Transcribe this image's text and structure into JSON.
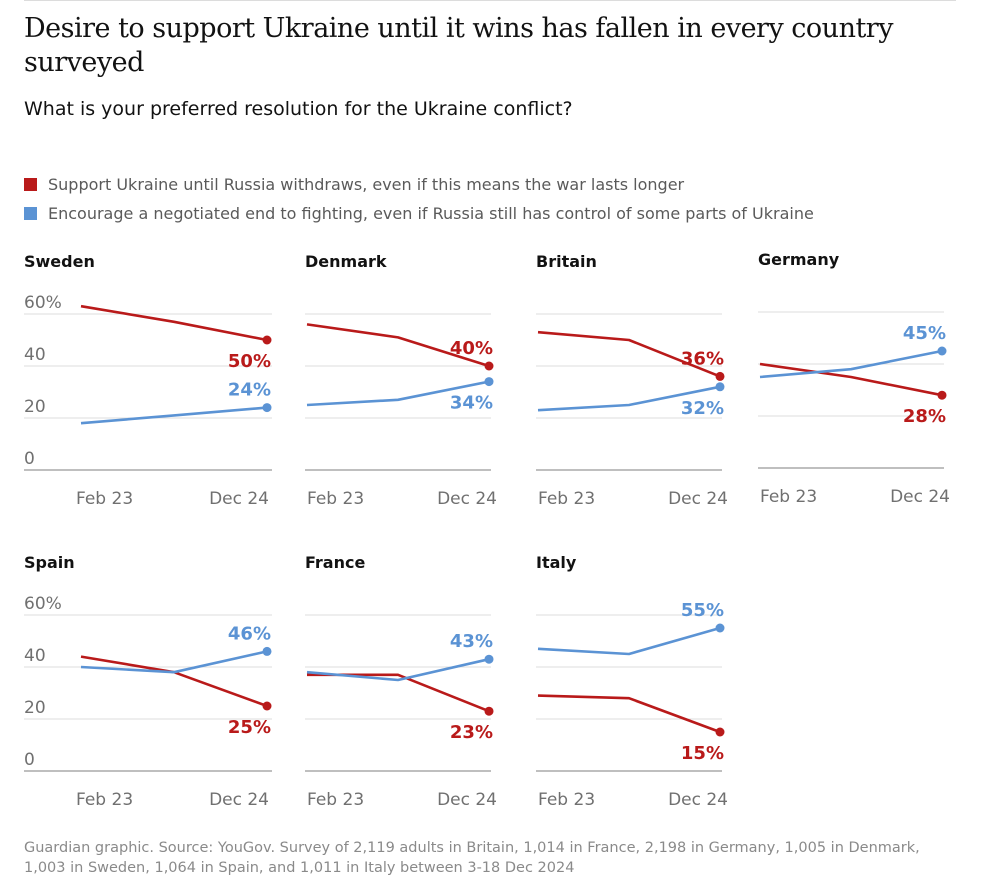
{
  "title": "Desire to support Ukraine until it wins has fallen in every country surveyed",
  "subtitle": "What is your preferred resolution for the Ukraine conflict?",
  "legend": [
    {
      "label": "Support Ukraine until Russia withdraws, even if this means the war lasts longer",
      "color": "#b91a1a"
    },
    {
      "label": "Encourage a negotiated end to fighting, even if Russia still has control of some parts of Ukraine",
      "color": "#5b93d4"
    }
  ],
  "source": "Guardian graphic. Source: YouGov. Survey of 2,119 adults in Britain, 1,014 in France, 2,198 in Germany, 1,005 in Denmark, 1,003 in Sweden, 1,064 in Spain, and 1,011 in Italy between 3-18 Dec 2024",
  "chart_data": [
    {
      "type": "line",
      "title": "Sweden",
      "x": [
        "Feb 23",
        "Dec 23",
        "Dec 24"
      ],
      "xticks": [
        "Feb 23",
        "Dec 24"
      ],
      "yticks": [
        "60%",
        "40",
        "20",
        "0"
      ],
      "ylim": [
        0,
        60
      ],
      "series": [
        {
          "values": [
            63,
            57,
            50
          ],
          "color": "#b91a1a",
          "end_label": "50%",
          "label_pos": "below"
        },
        {
          "values": [
            18,
            21,
            24
          ],
          "color": "#5b93d4",
          "end_label": "24%",
          "label_pos": "above"
        }
      ]
    },
    {
      "type": "line",
      "title": "Denmark",
      "x": [
        "Feb 23",
        "Dec 23",
        "Dec 24"
      ],
      "xticks": [
        "Feb 23",
        "Dec 24"
      ],
      "yticks": [],
      "ylim": [
        0,
        60
      ],
      "series": [
        {
          "values": [
            56,
            51,
            40
          ],
          "color": "#b91a1a",
          "end_label": "40%",
          "label_pos": "above"
        },
        {
          "values": [
            25,
            27,
            34
          ],
          "color": "#5b93d4",
          "end_label": "34%",
          "label_pos": "below"
        }
      ]
    },
    {
      "type": "line",
      "title": "Britain",
      "x": [
        "Feb 23",
        "Dec 23",
        "Dec 24"
      ],
      "xticks": [
        "Feb 23",
        "Dec 24"
      ],
      "yticks": [],
      "ylim": [
        0,
        60
      ],
      "series": [
        {
          "values": [
            53,
            50,
            36
          ],
          "color": "#b91a1a",
          "end_label": "36%",
          "label_pos": "above"
        },
        {
          "values": [
            23,
            25,
            32
          ],
          "color": "#5b93d4",
          "end_label": "32%",
          "label_pos": "below"
        }
      ]
    },
    {
      "type": "line",
      "title": "Germany",
      "x": [
        "Feb 23",
        "Dec 23",
        "Dec 24"
      ],
      "xticks": [
        "Feb 23",
        "Dec 24"
      ],
      "yticks": [],
      "ylim": [
        0,
        60
      ],
      "series": [
        {
          "values": [
            40,
            35,
            28
          ],
          "color": "#b91a1a",
          "end_label": "28%",
          "label_pos": "below"
        },
        {
          "values": [
            35,
            38,
            45
          ],
          "color": "#5b93d4",
          "end_label": "45%",
          "label_pos": "above"
        }
      ]
    },
    {
      "type": "line",
      "title": "Spain",
      "x": [
        "Feb 23",
        "Dec 23",
        "Dec 24"
      ],
      "xticks": [
        "Feb 23",
        "Dec 24"
      ],
      "yticks": [
        "60%",
        "40",
        "20",
        "0"
      ],
      "ylim": [
        0,
        60
      ],
      "series": [
        {
          "values": [
            44,
            38,
            25
          ],
          "color": "#b91a1a",
          "end_label": "25%",
          "label_pos": "below"
        },
        {
          "values": [
            40,
            38,
            46
          ],
          "color": "#5b93d4",
          "end_label": "46%",
          "label_pos": "above"
        }
      ]
    },
    {
      "type": "line",
      "title": "France",
      "x": [
        "Feb 23",
        "Dec 23",
        "Dec 24"
      ],
      "xticks": [
        "Feb 23",
        "Dec 24"
      ],
      "yticks": [],
      "ylim": [
        0,
        60
      ],
      "series": [
        {
          "values": [
            37,
            37,
            23
          ],
          "color": "#b91a1a",
          "end_label": "23%",
          "label_pos": "below"
        },
        {
          "values": [
            38,
            35,
            43
          ],
          "color": "#5b93d4",
          "end_label": "43%",
          "label_pos": "above"
        }
      ]
    },
    {
      "type": "line",
      "title": "Italy",
      "x": [
        "Feb 23",
        "Dec 23",
        "Dec 24"
      ],
      "xticks": [
        "Feb 23",
        "Dec 24"
      ],
      "yticks": [],
      "ylim": [
        0,
        60
      ],
      "series": [
        {
          "values": [
            29,
            28,
            15
          ],
          "color": "#b91a1a",
          "end_label": "15%",
          "label_pos": "below"
        },
        {
          "values": [
            47,
            45,
            55
          ],
          "color": "#5b93d4",
          "end_label": "55%",
          "label_pos": "above"
        }
      ]
    }
  ]
}
